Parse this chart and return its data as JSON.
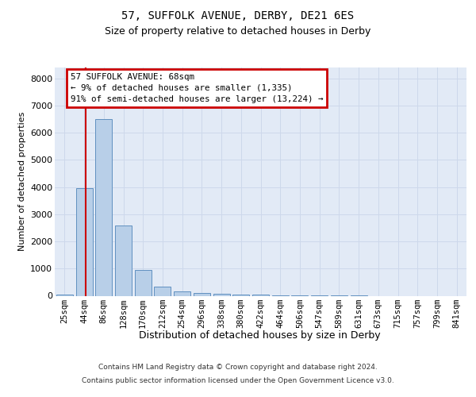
{
  "title1": "57, SUFFOLK AVENUE, DERBY, DE21 6ES",
  "title2": "Size of property relative to detached houses in Derby",
  "xlabel": "Distribution of detached houses by size in Derby",
  "ylabel": "Number of detached properties",
  "bar_labels": [
    "25sqm",
    "44sqm",
    "86sqm",
    "128sqm",
    "170sqm",
    "212sqm",
    "254sqm",
    "296sqm",
    "338sqm",
    "380sqm",
    "422sqm",
    "464sqm",
    "506sqm",
    "547sqm",
    "589sqm",
    "631sqm",
    "673sqm",
    "715sqm",
    "757sqm",
    "799sqm",
    "841sqm"
  ],
  "bar_values": [
    50,
    3950,
    6500,
    2600,
    950,
    350,
    150,
    100,
    75,
    50,
    30,
    10,
    5,
    2,
    1,
    1,
    0,
    0,
    0,
    0,
    0
  ],
  "bar_color": "#b8cfe8",
  "bar_edge_color": "#6090c0",
  "red_line_color": "#cc0000",
  "annotation_box_edge": "#cc0000",
  "ylim_max": 8400,
  "yticks": [
    0,
    1000,
    2000,
    3000,
    4000,
    5000,
    6000,
    7000,
    8000
  ],
  "annotation_line1": "57 SUFFOLK AVENUE: 68sqm",
  "annotation_line2": "← 9% of detached houses are smaller (1,335)",
  "annotation_line3": "91% of semi-detached houses are larger (13,224) →",
  "footer1": "Contains HM Land Registry data © Crown copyright and database right 2024.",
  "footer2": "Contains public sector information licensed under the Open Government Licence v3.0.",
  "grid_color": "#cdd8eb",
  "bg_color": "#e2eaf6"
}
